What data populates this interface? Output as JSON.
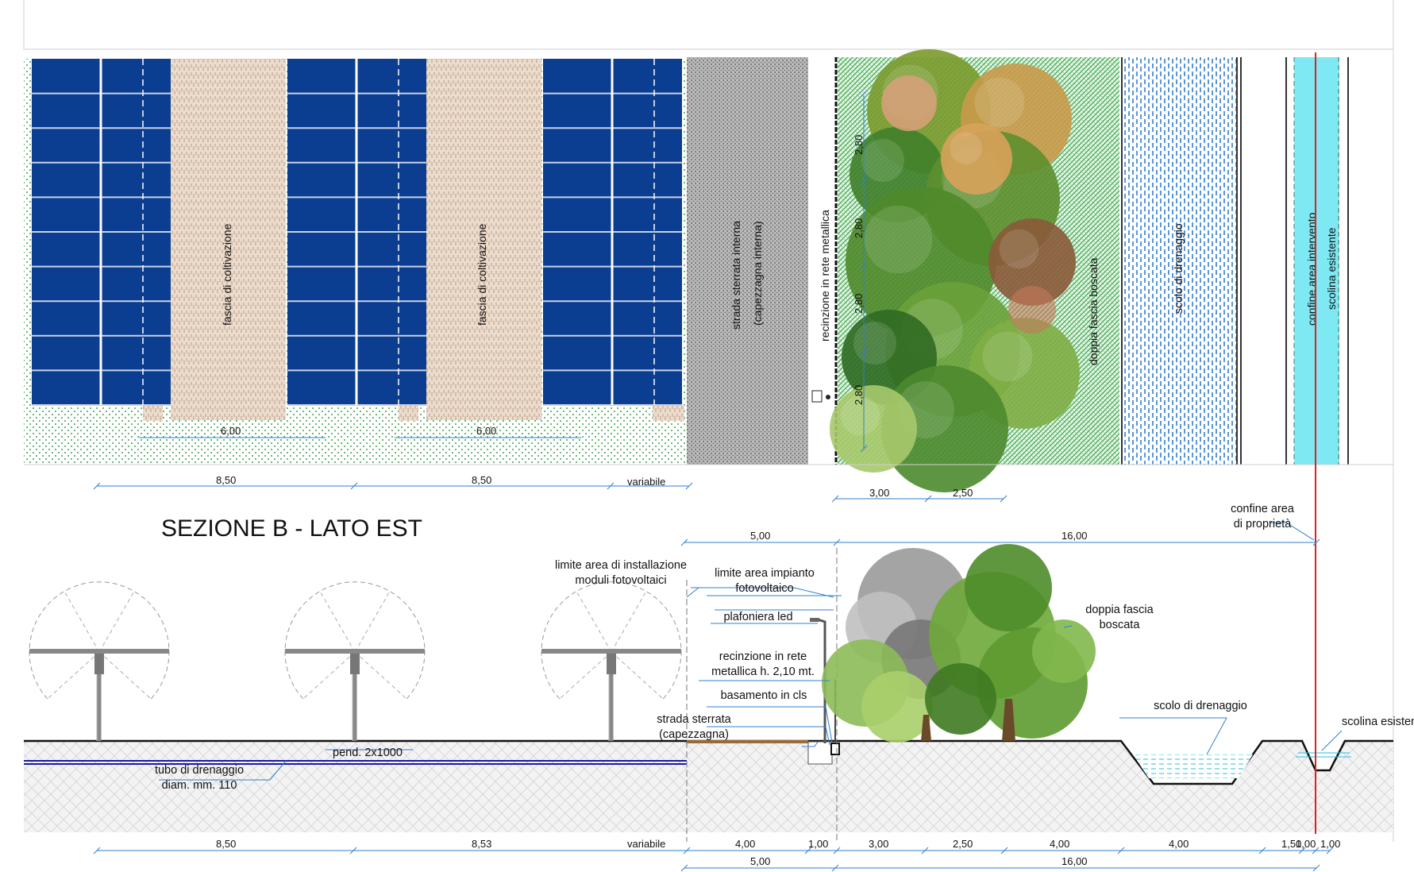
{
  "section_title": "SEZIONE  B - LATO EST",
  "plan": {
    "crop_strip_label": "fascia di coltivazione",
    "crop_strip_width": "6,00",
    "pitch_dims": [
      "8,50",
      "8,50",
      "variabile"
    ],
    "road_label_1": "strada sterrata interna",
    "road_label_2": "(capezzagna interna)",
    "fence_label": "recinzione in rete metallica",
    "tree_spacing": "2,80",
    "wood_label": "doppia fascia boscata",
    "drain_label": "scolo di drenaggio",
    "boundary_label": "confine area intervento",
    "ditch_label": "scolina esistente",
    "wood_dims": [
      "3,00",
      "2,50"
    ]
  },
  "section": {
    "top_dims": [
      "5,00",
      "16,00"
    ],
    "property_boundary": [
      "confine area",
      "di proprietà"
    ],
    "pv_limit": [
      "limite area di installazione",
      "moduli fotovoltaici"
    ],
    "plant_limit": [
      "limite area impianto",
      "fotovoltaico"
    ],
    "lamp": "plafoniera led",
    "fence": [
      "recinzione in rete",
      "metallica h. 2,10 mt."
    ],
    "base": "basamento in cls",
    "dirt_road": [
      "strada sterrata",
      "(capezzagna)"
    ],
    "slope": "pend. 2x1000",
    "drain_pipe": [
      "tubo di drenaggio",
      "diam. mm. 110"
    ],
    "wood": [
      "doppia fascia",
      "boscata"
    ],
    "drain": "scolo di drenaggio",
    "ditch": "scolina esistente",
    "bottom_dims": [
      "8,50",
      "8,53",
      "variabile",
      "4,00",
      "1,00",
      "3,00",
      "2,50",
      "4,00",
      "4,00",
      "1,50",
      "1,00",
      "1,00"
    ],
    "bottom_totals": [
      "5,00",
      "16,00"
    ]
  },
  "colors": {
    "panel_blue": "#0b3d91",
    "crop_strip": "#ead8c8",
    "grass_dot": "#2e9e3e",
    "road_gray": "#9a9a9a",
    "water_cyan": "#7fe9f3",
    "boundary_red": "#e02020",
    "dim_blue": "#2f7fd0"
  }
}
